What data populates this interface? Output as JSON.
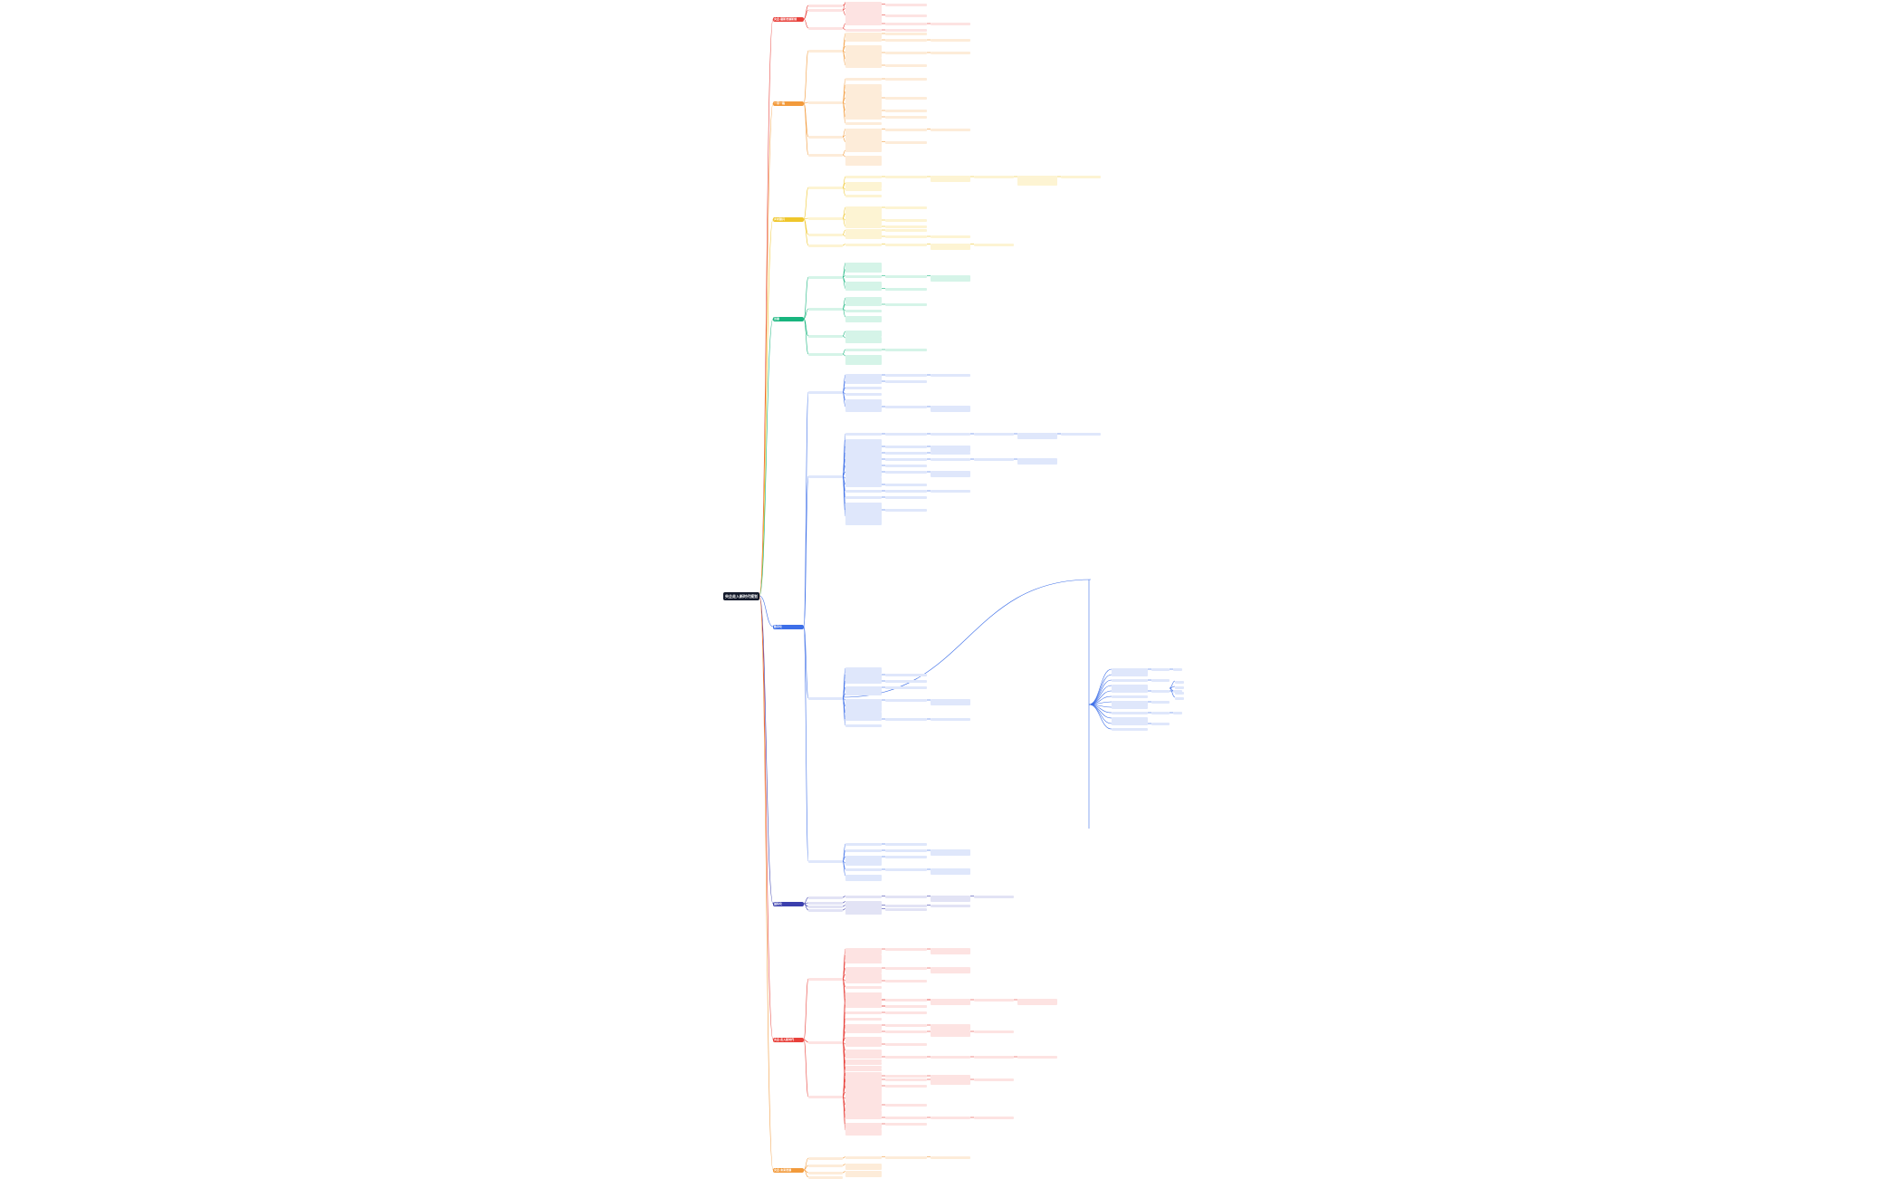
{
  "root": {
    "text": "央企走入新时代规划"
  },
  "colors": {
    "root_bg": "#141a2b",
    "b0": "#e8403a",
    "b1": "#f29a3b",
    "b2": "#efc62b",
    "b3": "#18b57e",
    "b4": "#3d6fe8",
    "b5": "#3b3fad",
    "b6": "#e8403a",
    "b7": "#f29a3b",
    "light": {
      "b0": "#fde3e2",
      "b1": "#fdecd9",
      "b2": "#fdf4d3",
      "b3": "#d5f4e8",
      "b4": "#dfe7fb",
      "b5": "#e2e3f5",
      "b6": "#fde3e2",
      "b7": "#fdecd9"
    }
  },
  "branches": [
    {
      "label": "央企·最新发展新规"
    },
    {
      "label": "一带一路"
    },
    {
      "label": "乡村振兴"
    },
    {
      "label": "双碳"
    },
    {
      "label": "数字化"
    },
    {
      "label": "国际化"
    },
    {
      "label": "央企·走入新时代"
    },
    {
      "label": "央企·未来发展"
    }
  ]
}
